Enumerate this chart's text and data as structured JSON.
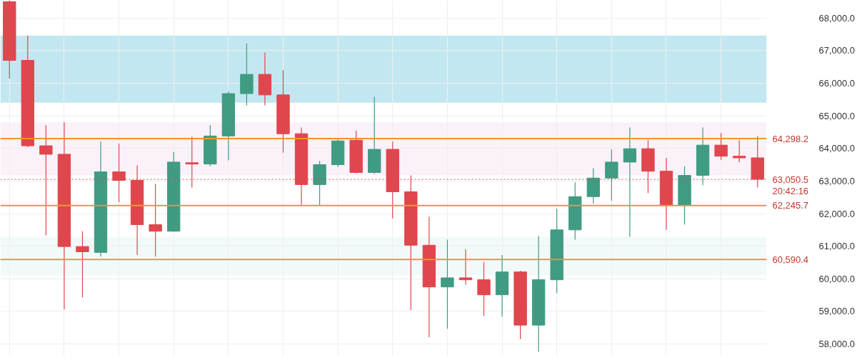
{
  "chart_data": {
    "type": "candlestick",
    "categories": [
      null,
      null,
      null,
      null,
      null,
      null,
      null,
      null,
      null,
      null,
      null,
      null,
      null,
      null,
      null,
      null,
      null,
      null,
      null,
      null,
      null,
      null,
      null,
      null,
      null,
      null,
      null,
      null,
      null,
      null,
      null,
      null,
      null,
      null,
      null,
      null,
      null,
      null,
      null,
      null,
      null,
      null
    ],
    "ohlc": [
      [
        68500,
        68540,
        66140,
        66700
      ],
      [
        66700,
        67460,
        64040,
        64080
      ],
      [
        64080,
        64710,
        61330,
        63820
      ],
      [
        63820,
        64800,
        59060,
        60990
      ],
      [
        60990,
        61460,
        59430,
        60830
      ],
      [
        60810,
        64210,
        60680,
        63280
      ],
      [
        63280,
        64150,
        62350,
        63020
      ],
      [
        63020,
        63480,
        60730,
        61660
      ],
      [
        61660,
        62910,
        60680,
        61460
      ],
      [
        61460,
        63890,
        61440,
        63580
      ],
      [
        63560,
        64360,
        62800,
        63520
      ],
      [
        63520,
        64710,
        63450,
        64380
      ],
      [
        64380,
        65750,
        63630,
        65680
      ],
      [
        65680,
        67220,
        65320,
        66270
      ],
      [
        66270,
        66940,
        65320,
        65640
      ],
      [
        65640,
        66400,
        63870,
        64450
      ],
      [
        64450,
        64640,
        62250,
        62890
      ],
      [
        62890,
        63610,
        62250,
        63500
      ],
      [
        63500,
        64300,
        63430,
        64230
      ],
      [
        64250,
        64540,
        63240,
        63260
      ],
      [
        63260,
        65580,
        63220,
        63970
      ],
      [
        63970,
        64210,
        61850,
        62670
      ],
      [
        62670,
        63170,
        59040,
        61030
      ],
      [
        61030,
        61900,
        58210,
        59750
      ],
      [
        59750,
        61200,
        58470,
        60030
      ],
      [
        60030,
        60900,
        59820,
        59970
      ],
      [
        59970,
        60510,
        58860,
        59510
      ],
      [
        59510,
        60730,
        58840,
        60210
      ],
      [
        60210,
        60250,
        58150,
        58580
      ],
      [
        58580,
        61310,
        57760,
        59970
      ],
      [
        59970,
        62150,
        59560,
        61500
      ],
      [
        61500,
        62960,
        61200,
        62520
      ],
      [
        62520,
        63390,
        62310,
        63090
      ],
      [
        63090,
        63970,
        62390,
        63580
      ],
      [
        63580,
        64640,
        61290,
        63990
      ],
      [
        63990,
        64250,
        62630,
        63300
      ],
      [
        63300,
        63710,
        61500,
        62250
      ],
      [
        62250,
        63450,
        61660,
        63170
      ],
      [
        63170,
        64640,
        62870,
        64100
      ],
      [
        64100,
        64470,
        63650,
        63760
      ],
      [
        63760,
        64250,
        63580,
        63710
      ],
      [
        63710,
        64380,
        62800,
        63050.5
      ]
    ],
    "colors": [
      "#e0464e",
      "#e0464e",
      "#e0464e",
      "#e0464e",
      "#e0464e",
      "#409b83",
      "#e0464e",
      "#e0464e",
      "#e0464e",
      "#409b83",
      "#e0464e",
      "#409b83",
      "#409b83",
      "#409b83",
      "#e0464e",
      "#e0464e",
      "#e0464e",
      "#409b83",
      "#409b83",
      "#e0464e",
      "#409b83",
      "#e0464e",
      "#e0464e",
      "#e0464e",
      "#409b83",
      "#e0464e",
      "#e0464e",
      "#409b83",
      "#e0464e",
      "#409b83",
      "#409b83",
      "#409b83",
      "#409b83",
      "#409b83",
      "#409b83",
      "#e0464e",
      "#e0464e",
      "#409b83",
      "#409b83",
      "#e0464e",
      "#e0464e",
      "#e0464e"
    ],
    "ylim": [
      57630,
      68540
    ],
    "yticks": [
      {
        "value": 58000,
        "label": "58,000.0"
      },
      {
        "value": 59000,
        "label": "59,000.0"
      },
      {
        "value": 60000,
        "label": "60,000.0"
      },
      {
        "value": 61000,
        "label": "61,000.0"
      },
      {
        "value": 62000,
        "label": "62,000.0"
      },
      {
        "value": 63000,
        "label": "63,000.0"
      },
      {
        "value": 64000,
        "label": "64,000.0"
      },
      {
        "value": 65000,
        "label": "65,000.0"
      },
      {
        "value": 66000,
        "label": "66,000.0"
      },
      {
        "value": 67000,
        "label": "67,000.0"
      },
      {
        "value": 68000,
        "label": "68,000.0"
      }
    ],
    "bands": [
      {
        "axis": "y",
        "from": 65400,
        "to": 67460,
        "color": "#bde4ef"
      },
      {
        "axis": "y",
        "from": 63170,
        "to": 64800,
        "color": "#fbeff8"
      },
      {
        "axis": "y",
        "from": 60100,
        "to": 61290,
        "color": "#f1faf8"
      }
    ],
    "ref_lines": [
      {
        "axis": "y",
        "value": 64298.2,
        "label": "64,298.2",
        "color": "#f0962a",
        "line_style": "solid"
      },
      {
        "axis": "y",
        "value": 62245.7,
        "label": "62,245.7",
        "color": "#f0962a",
        "line_style": "solid"
      },
      {
        "axis": "y",
        "value": 60590.4,
        "label": "60,590.4",
        "color": "#f0962a",
        "line_style": "solid"
      },
      {
        "axis": "y",
        "value": 63050.5,
        "label": "63,050.5",
        "color": "#e0464e",
        "line_style": "dotted"
      }
    ],
    "annotations": [
      "20:42:16"
    ],
    "grid": true,
    "tick_labels": "y"
  }
}
